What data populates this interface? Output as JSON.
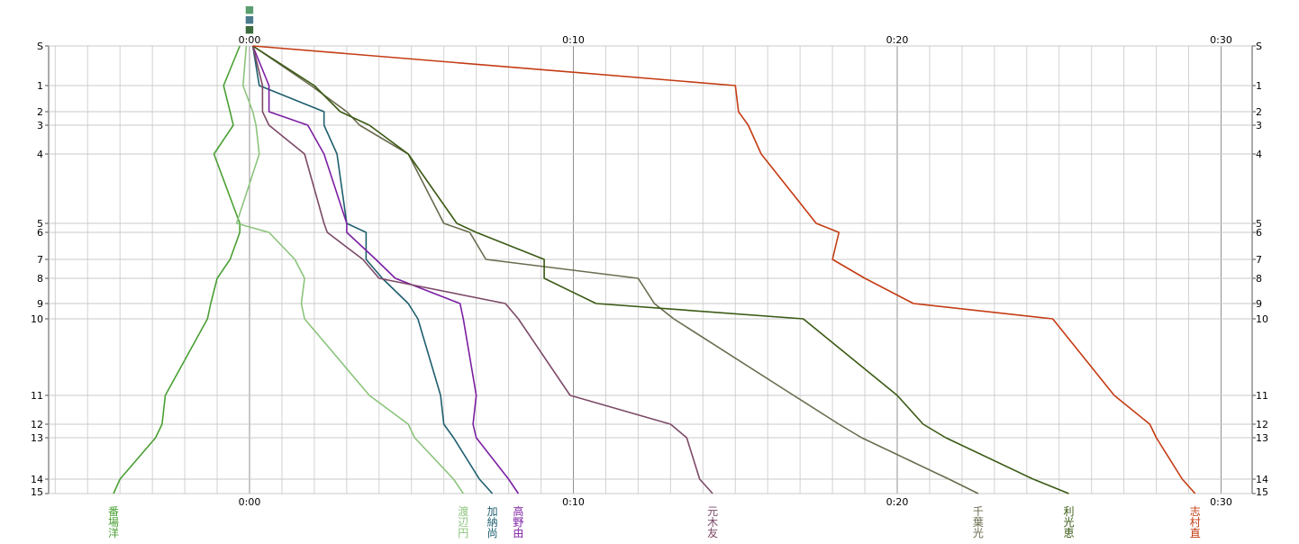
{
  "chart_data": {
    "type": "line",
    "x_ticks": [
      "0:00",
      "0:10",
      "0:20",
      "0:30"
    ],
    "y_ticks": [
      "S",
      "1",
      "2",
      "3",
      "4",
      "5",
      "6",
      "7",
      "8",
      "9",
      "10",
      "11",
      "12",
      "13",
      "14",
      "15"
    ],
    "top_markers": [
      {
        "label": "■",
        "color": "#5a9e6f"
      },
      {
        "label": "■",
        "color": "#4a7a8c"
      },
      {
        "label": "■",
        "color": "#3d6b3d"
      }
    ],
    "series": [
      {
        "name": "番場洋",
        "color": "#4aa034",
        "values": [
          -0.3,
          -0.8,
          -0.6,
          -0.5,
          -1.1,
          -0.3,
          -0.3,
          -0.6,
          -1.0,
          -1.2,
          -1.3,
          -2.6,
          -2.7,
          -2.9,
          -4.0,
          -4.2
        ]
      },
      {
        "name": "渡辺円",
        "color": "#8cc47c",
        "values": [
          -0.1,
          -0.2,
          0.1,
          0.2,
          0.3,
          -0.4,
          0.6,
          1.4,
          1.7,
          1.6,
          1.7,
          3.7,
          4.9,
          5.1,
          6.3,
          6.6
        ]
      },
      {
        "name": "加納尚",
        "color": "#1f5f6e",
        "values": [
          0.1,
          0.3,
          2.3,
          2.3,
          2.7,
          3.0,
          3.6,
          3.6,
          4.1,
          4.9,
          5.2,
          5.9,
          6.0,
          6.3,
          7.1,
          7.5
        ]
      },
      {
        "name": "高野由",
        "color": "#7b1fa2",
        "values": [
          0.1,
          0.6,
          0.6,
          1.8,
          2.3,
          3.0,
          3.0,
          3.9,
          4.5,
          6.5,
          6.6,
          7.0,
          6.9,
          7.0,
          8.0,
          8.3
        ]
      },
      {
        "name": "元木友",
        "color": "#7c4a68",
        "values": [
          0.1,
          0.4,
          0.4,
          0.6,
          1.7,
          2.3,
          2.4,
          3.5,
          4.0,
          7.9,
          8.3,
          9.9,
          13.0,
          13.5,
          13.9,
          14.3
        ]
      },
      {
        "name": "千葉光",
        "color": "#6b6b4f",
        "values": [
          0.1,
          1.9,
          3.0,
          3.4,
          4.9,
          6.0,
          6.8,
          7.3,
          12.0,
          12.5,
          13.1,
          16.8,
          18.2,
          18.9,
          21.6,
          22.5
        ]
      },
      {
        "name": "利光恵",
        "color": "#3a5a14",
        "values": [
          0.1,
          2.0,
          2.8,
          3.7,
          4.9,
          6.4,
          7.0,
          9.1,
          9.1,
          10.7,
          17.1,
          20.0,
          20.8,
          21.5,
          24.2,
          25.3
        ]
      },
      {
        "name": "志村直",
        "color": "#c43c14",
        "values": [
          0.1,
          15.0,
          15.1,
          15.4,
          15.8,
          17.5,
          18.2,
          18.0,
          19.0,
          20.5,
          24.8,
          26.7,
          27.8,
          28.0,
          28.8,
          29.2
        ]
      }
    ]
  }
}
